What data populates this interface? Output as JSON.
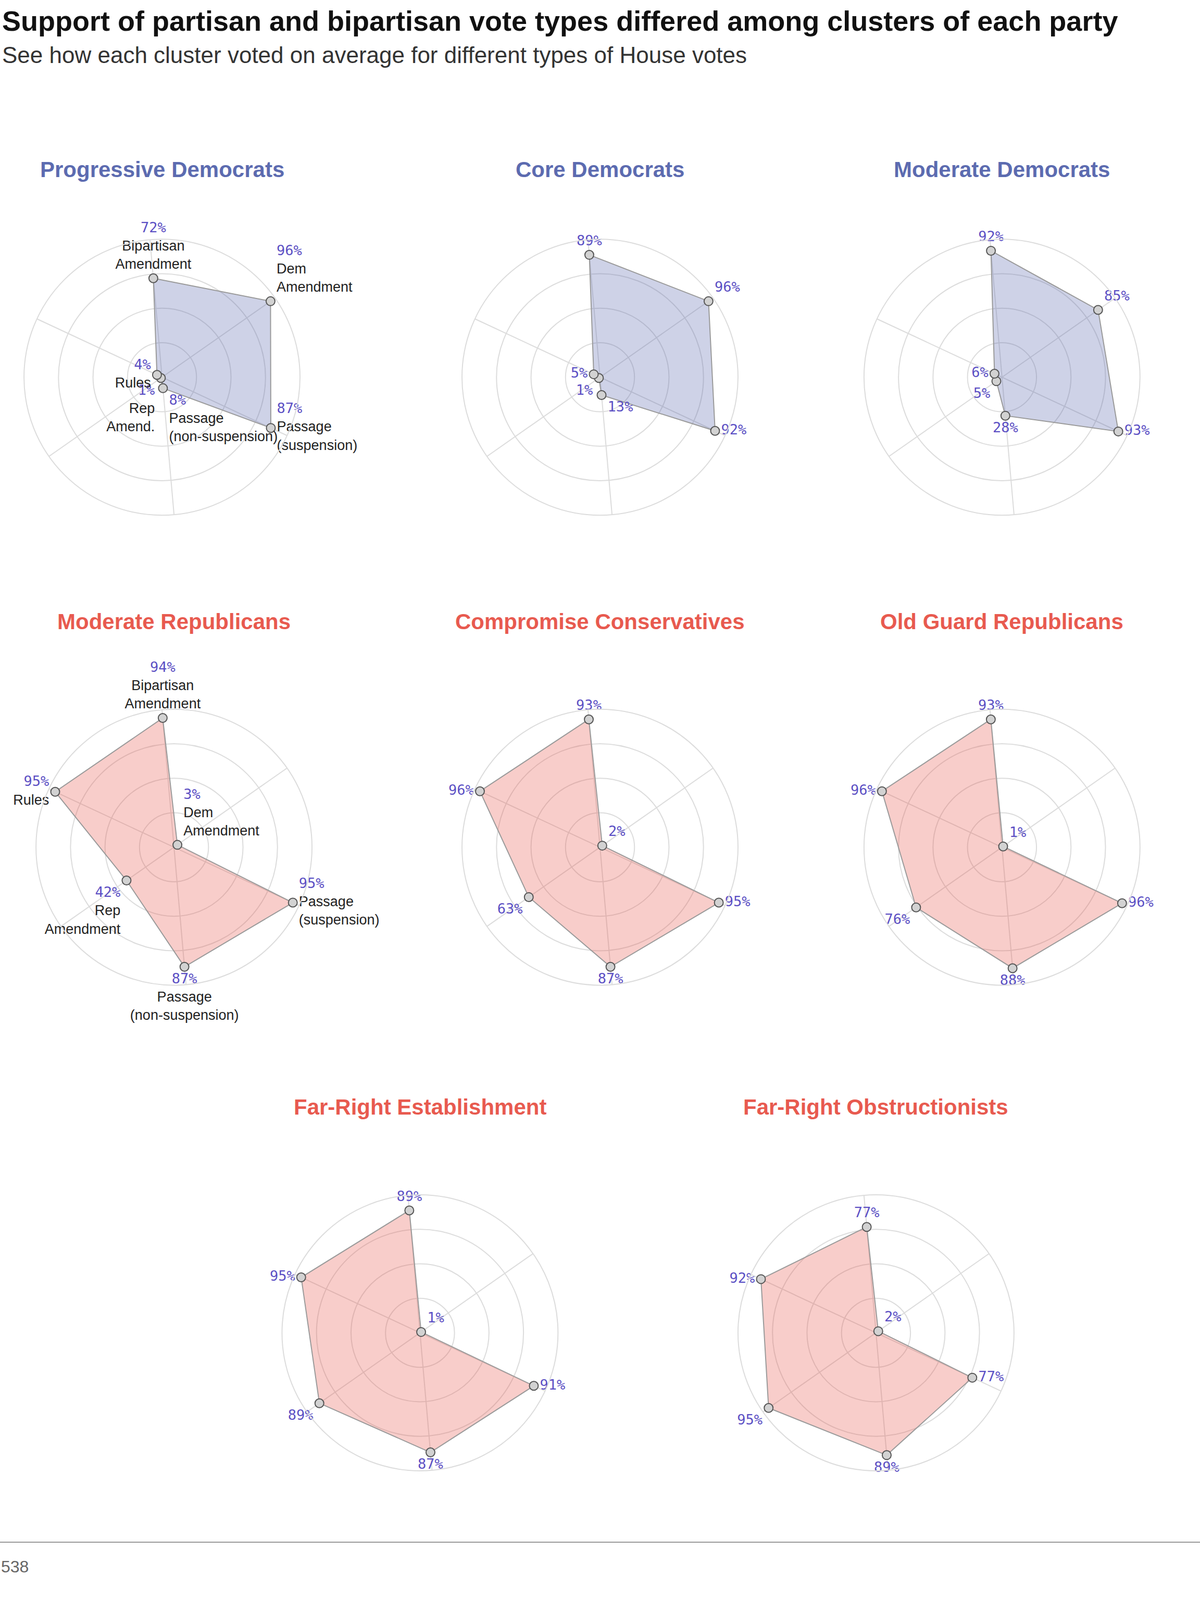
{
  "title": "Support of partisan and bipartisan vote types differed among clusters of each party",
  "subtitle": "See how each cluster voted on average for different types of House votes",
  "source": "538",
  "chart_data": [
    {
      "type": "radar",
      "title": "Progressive Democrats",
      "color": "#5c6bb0",
      "categories": [
        "Bipartisan Amendment",
        "Dem Amendment",
        "Passage (suspension)",
        "Passage (non-suspension)",
        "Rep Amend.",
        "Rules"
      ],
      "values": [
        72,
        96,
        87,
        8,
        1,
        4
      ],
      "value_labels": [
        "72%",
        "96%",
        "87%",
        "8%",
        "1%",
        "4%"
      ],
      "ylim": [
        0,
        100
      ],
      "yticks": [
        25,
        50,
        75,
        100
      ],
      "grid": true,
      "tick_labels": false,
      "data_labels": true
    },
    {
      "type": "radar",
      "title": "Core Democrats",
      "color": "#5c6bb0",
      "categories": [
        null,
        null,
        null,
        null,
        null,
        null
      ],
      "values": [
        89,
        96,
        92,
        13,
        1,
        5
      ],
      "value_labels": [
        "89%",
        "96%",
        "92%",
        "13%",
        "1%",
        "5%"
      ],
      "ylim": [
        0,
        100
      ],
      "yticks": [
        25,
        50,
        75,
        100
      ],
      "grid": true,
      "tick_labels": false,
      "data_labels": true
    },
    {
      "type": "radar",
      "title": "Moderate Democrats",
      "color": "#5c6bb0",
      "categories": [
        null,
        null,
        null,
        null,
        null,
        null
      ],
      "values": [
        92,
        85,
        93,
        28,
        5,
        6
      ],
      "value_labels": [
        "92%",
        "85%",
        "93%",
        "28%",
        "5%",
        "6%"
      ],
      "ylim": [
        0,
        100
      ],
      "yticks": [
        25,
        50,
        75,
        100
      ],
      "grid": true,
      "tick_labels": false,
      "data_labels": true
    },
    {
      "type": "radar",
      "title": "Moderate Republicans",
      "color": "#e85a4f",
      "categories": [
        "Bipartisan Amendment",
        "Dem Amendment",
        "Passage (suspension)",
        "Passage (non-suspension)",
        "Rep Amendment",
        "Rules"
      ],
      "values": [
        94,
        3,
        95,
        87,
        42,
        95
      ],
      "value_labels": [
        "94%",
        "3%",
        "95%",
        "87%",
        "42%",
        "95%"
      ],
      "ylim": [
        0,
        100
      ],
      "yticks": [
        25,
        50,
        75,
        100
      ],
      "grid": true,
      "tick_labels": false,
      "data_labels": true
    },
    {
      "type": "radar",
      "title": "Compromise Conservatives",
      "color": "#e85a4f",
      "categories": [
        null,
        null,
        null,
        null,
        null,
        null
      ],
      "values": [
        93,
        2,
        95,
        87,
        63,
        96
      ],
      "value_labels": [
        "93%",
        "2%",
        "95%",
        "87%",
        "63%",
        "96%"
      ],
      "ylim": [
        0,
        100
      ],
      "yticks": [
        25,
        50,
        75,
        100
      ],
      "grid": true,
      "tick_labels": false,
      "data_labels": true
    },
    {
      "type": "radar",
      "title": "Old Guard Republicans",
      "color": "#e85a4f",
      "categories": [
        null,
        null,
        null,
        null,
        null,
        null
      ],
      "values": [
        93,
        1,
        96,
        88,
        76,
        96
      ],
      "value_labels": [
        "93%",
        "1%",
        "96%",
        "88%",
        "76%",
        "96%"
      ],
      "ylim": [
        0,
        100
      ],
      "yticks": [
        25,
        50,
        75,
        100
      ],
      "grid": true,
      "tick_labels": false,
      "data_labels": true
    },
    {
      "type": "radar",
      "title": "Far-Right Establishment",
      "color": "#e85a4f",
      "categories": [
        null,
        null,
        null,
        null,
        null,
        null
      ],
      "values": [
        89,
        1,
        91,
        87,
        89,
        95
      ],
      "value_labels": [
        "89%",
        "1%",
        "91%",
        "87%",
        "89%",
        "95%"
      ],
      "ylim": [
        0,
        100
      ],
      "yticks": [
        25,
        50,
        75,
        100
      ],
      "grid": true,
      "tick_labels": false,
      "data_labels": true
    },
    {
      "type": "radar",
      "title": "Far-Right Obstructionists",
      "color": "#e85a4f",
      "categories": [
        null,
        null,
        null,
        null,
        null,
        null
      ],
      "values": [
        77,
        2,
        77,
        89,
        95,
        92
      ],
      "value_labels": [
        "77%",
        "2%",
        "77%",
        "89%",
        "95%",
        "92%"
      ],
      "ylim": [
        0,
        100
      ],
      "yticks": [
        25,
        50,
        75,
        100
      ],
      "grid": true,
      "tick_labels": false,
      "data_labels": true
    }
  ]
}
